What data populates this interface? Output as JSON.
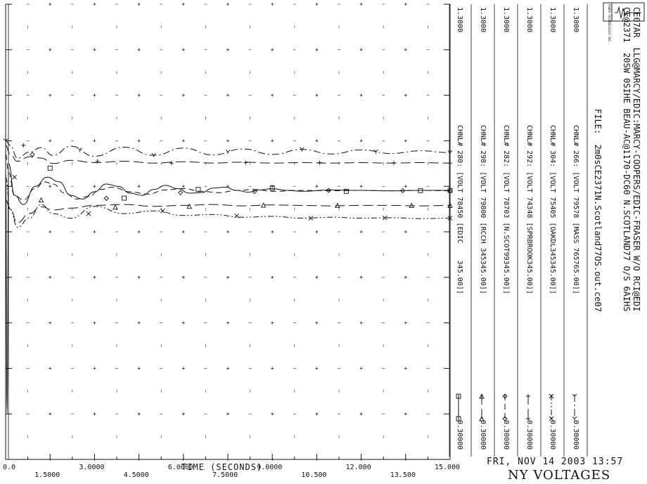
{
  "logo": {
    "text": "POWER TECHNOLOGIES INC."
  },
  "title": {
    "line1": "CE07AR  LLG@MARCY/EDIC:MARCY-COOPERS/EDIC-FRASER W/O RCI@EDI",
    "line2": "CE@2371  20SW 0SIHE BEAU-AC@1170-DC60 N.SCOTLAND77 O/S 6AIHS"
  },
  "file_label": "FILE:  2m0sCE2371N.Scotland77OS.out.ce07",
  "date_time": "FRI, NOV 14 2003   13:57",
  "plot_name": "NY VOLTAGES",
  "chart_data": {
    "type": "line",
    "xlabel": "TIME  (SECONDS)",
    "xlim": [
      0,
      15.0
    ],
    "x_ticks": [
      "0.0",
      "1.5000",
      "3.0000",
      "4.5000",
      "6.0000",
      "7.5000",
      "9.0000",
      "10.500",
      "12.000",
      "13.500",
      "15.000"
    ],
    "ylim": [
      0.3,
      1.3
    ],
    "grid": "dotted crosses",
    "series": [
      {
        "name": "CHNL# 266: [VOLT 79578 [MASS 765765.00]]",
        "style": "dash-dot",
        "marker": "Y",
        "max": "1.3000",
        "min": "0.30000",
        "x": [
          0,
          0.15,
          0.4,
          0.8,
          1.2,
          1.6,
          2.2,
          3.0,
          4.0,
          5.0,
          6.0,
          7.0,
          8.0,
          9.0,
          10.0,
          11.0,
          12.0,
          13.0,
          14.0,
          15.0
        ],
        "y": [
          1.0,
          0.99,
          0.962,
          0.975,
          0.985,
          0.968,
          0.988,
          0.966,
          0.986,
          0.968,
          0.984,
          0.969,
          0.982,
          0.97,
          0.981,
          0.971,
          0.98,
          0.972,
          0.978,
          0.974
        ]
      },
      {
        "name": "CHNL# 304: [VOLT 75405 [OAKDL345345.00]]",
        "style": "dash-dot-dot",
        "marker": "x",
        "max": "1.3000",
        "min": "0.30000",
        "x": [
          0,
          0.15,
          0.4,
          0.8,
          1.2,
          1.6,
          2.2,
          3.0,
          4.0,
          5.0,
          6.0,
          7.0,
          8.0,
          9.0,
          10.0,
          11.0,
          12.0,
          13.0,
          14.0,
          15.0
        ],
        "y": [
          0.92,
          0.85,
          0.81,
          0.83,
          0.86,
          0.84,
          0.83,
          0.856,
          0.84,
          0.846,
          0.836,
          0.838,
          0.832,
          0.834,
          0.83,
          0.832,
          0.83,
          0.831,
          0.829,
          0.83
        ]
      },
      {
        "name": "CHNL# 292: [VOLT 74348 [SPRBROOK345.00]]",
        "style": "long-dash",
        "marker": "+",
        "max": "1.3000",
        "min": "0.30000",
        "x": [
          0,
          0.15,
          0.4,
          0.8,
          1.2,
          1.6,
          2.2,
          3.0,
          4.0,
          5.0,
          6.0,
          7.0,
          8.0,
          9.0,
          10.0,
          11.0,
          12.0,
          13.0,
          14.0,
          15.0
        ],
        "y": [
          0.99,
          0.97,
          0.955,
          0.965,
          0.962,
          0.95,
          0.957,
          0.952,
          0.955,
          0.951,
          0.954,
          0.951,
          0.953,
          0.951,
          0.952,
          0.951,
          0.952,
          0.951,
          0.952,
          0.951
        ]
      },
      {
        "name": "CHNL# 282: [VOLT 78703 [N.SCOT99345.00]]",
        "style": "dashed",
        "marker": "diamond",
        "max": "1.3000",
        "min": "0.30000",
        "x": [
          0,
          0.1,
          0.3,
          0.6,
          1.0,
          1.3,
          1.6,
          2.0,
          2.4,
          2.8,
          3.2,
          3.6,
          4.2,
          4.8,
          5.4,
          6.0,
          6.6,
          7.2,
          7.8,
          8.4,
          9.0,
          10.0,
          11.0,
          12.0,
          13.0,
          14.0,
          15.0
        ],
        "y": [
          0.97,
          0.93,
          0.88,
          0.87,
          0.895,
          0.91,
          0.905,
          0.885,
          0.872,
          0.878,
          0.893,
          0.898,
          0.888,
          0.883,
          0.892,
          0.895,
          0.889,
          0.886,
          0.891,
          0.893,
          0.889,
          0.891,
          0.89,
          0.891,
          0.89,
          0.891,
          0.89
        ]
      },
      {
        "name": "CHNL# 298: [VOLT 79800 [RCCH 345345.00]]",
        "style": "long-dash",
        "marker": "triangle",
        "max": "1.3000",
        "min": "0.30000",
        "x": [
          0,
          0.15,
          0.4,
          0.8,
          1.2,
          1.6,
          2.2,
          3.0,
          4.0,
          5.0,
          6.0,
          7.0,
          8.0,
          9.0,
          10.0,
          11.0,
          12.0,
          13.0,
          14.0,
          15.0
        ],
        "y": [
          0.87,
          0.85,
          0.82,
          0.84,
          0.855,
          0.848,
          0.852,
          0.858,
          0.86,
          0.856,
          0.858,
          0.86,
          0.857,
          0.859,
          0.858,
          0.857,
          0.858,
          0.858,
          0.857,
          0.858
        ]
      },
      {
        "name": "CHNL# 280: [VOLT 78450 [EDIC    345.00]]",
        "style": "solid",
        "marker": "square",
        "max": "1.3000",
        "min": "0.30000",
        "x": [
          0,
          0.05,
          0.1,
          0.3,
          0.6,
          1.0,
          1.4,
          1.8,
          2.2,
          2.6,
          3.0,
          3.4,
          3.8,
          4.2,
          4.6,
          5.0,
          5.4,
          5.8,
          6.2,
          6.6,
          7.0,
          7.4,
          7.8,
          8.2,
          8.6,
          9.0,
          9.5,
          10.0,
          11.0,
          12.0,
          13.0,
          14.0,
          15.0
        ],
        "y": [
          0.94,
          0.4,
          0.95,
          0.88,
          0.86,
          0.9,
          0.92,
          0.91,
          0.88,
          0.872,
          0.888,
          0.905,
          0.9,
          0.885,
          0.88,
          0.893,
          0.902,
          0.895,
          0.885,
          0.886,
          0.896,
          0.898,
          0.891,
          0.887,
          0.892,
          0.895,
          0.891,
          0.889,
          0.892,
          0.891,
          0.89,
          0.891,
          0.891
        ]
      }
    ]
  }
}
